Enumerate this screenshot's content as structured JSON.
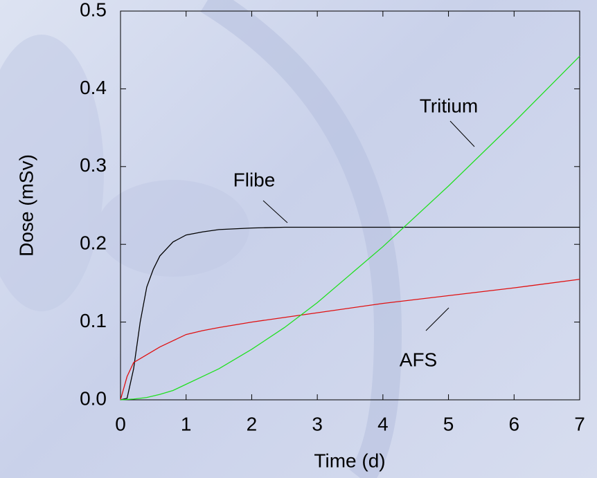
{
  "chart_data": {
    "type": "line",
    "xlabel": "Time (d)",
    "ylabel": "Dose (mSv)",
    "x": [
      0,
      0.1,
      0.2,
      0.3,
      0.4,
      0.5,
      0.6,
      0.8,
      1,
      1.25,
      1.5,
      2,
      2.5,
      3,
      4,
      5,
      6,
      7
    ],
    "series": [
      {
        "name": "Flibe",
        "color": "#000000",
        "values": [
          0,
          0.002,
          0.04,
          0.1,
          0.145,
          0.168,
          0.185,
          0.203,
          0.212,
          0.216,
          0.219,
          0.221,
          0.222,
          0.222,
          0.222,
          0.222,
          0.222,
          0.222
        ]
      },
      {
        "name": "AFS",
        "color": "#e01010",
        "values": [
          0,
          0.03,
          0.048,
          0.053,
          0.058,
          0.063,
          0.068,
          0.076,
          0.084,
          0.089,
          0.093,
          0.1,
          0.106,
          0.112,
          0.124,
          0.134,
          0.144,
          0.155
        ]
      },
      {
        "name": "Tritium",
        "color": "#20e020",
        "values": [
          0,
          0.0005,
          0.001,
          0.002,
          0.003,
          0.005,
          0.007,
          0.012,
          0.02,
          0.03,
          0.04,
          0.065,
          0.093,
          0.125,
          0.197,
          0.275,
          0.357,
          0.442
        ]
      }
    ],
    "xlim": [
      0,
      7
    ],
    "xticks": [
      0,
      1,
      2,
      3,
      4,
      5,
      6,
      7
    ],
    "ylim": [
      0,
      0.5
    ],
    "yticks": [
      {
        "value": 0,
        "label": "0.0"
      },
      0.1,
      0.2,
      0.3,
      0.4,
      0.5
    ]
  }
}
